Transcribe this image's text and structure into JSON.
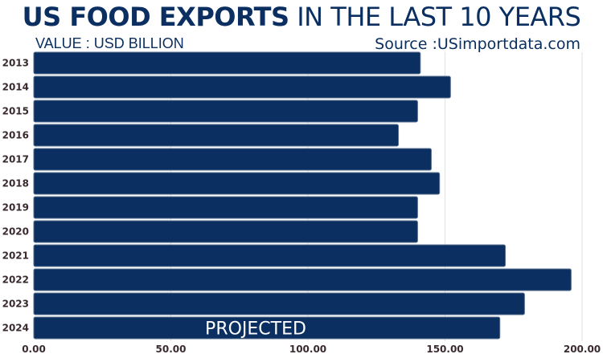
{
  "title_bold": "US FOOD EXPORTS",
  "title_light": "IN THE LAST 10 YEARS",
  "subtitle": "VALUE : USD BILLION",
  "source": "Source :USimportdata.com",
  "colors": {
    "bar": "#0a2f60",
    "bar_edge": "#5a7090",
    "text": "#3a2a30",
    "grid": "#e2e2e2"
  },
  "chart_data": {
    "type": "bar",
    "orientation": "horizontal",
    "title": "US FOOD EXPORTS IN THE LAST 10 YEARS",
    "xlabel": "VALUE : USD BILLION",
    "ylabel": "",
    "categories": [
      "2013",
      "2014",
      "2015",
      "2016",
      "2017",
      "2018",
      "2019",
      "2020",
      "2021",
      "2022",
      "2023",
      "2024"
    ],
    "values": [
      141,
      152,
      140,
      133,
      145,
      148,
      140,
      140,
      172,
      196,
      179,
      170
    ],
    "xlim": [
      0,
      200
    ],
    "xticks": [
      0,
      50,
      100,
      150,
      200
    ],
    "xtick_labels": [
      "0.00",
      "50.00",
      "100.00",
      "150.00",
      "200.00"
    ],
    "grid": true,
    "annotations": [
      {
        "category": "2024",
        "text": "PROJECTED"
      }
    ]
  }
}
